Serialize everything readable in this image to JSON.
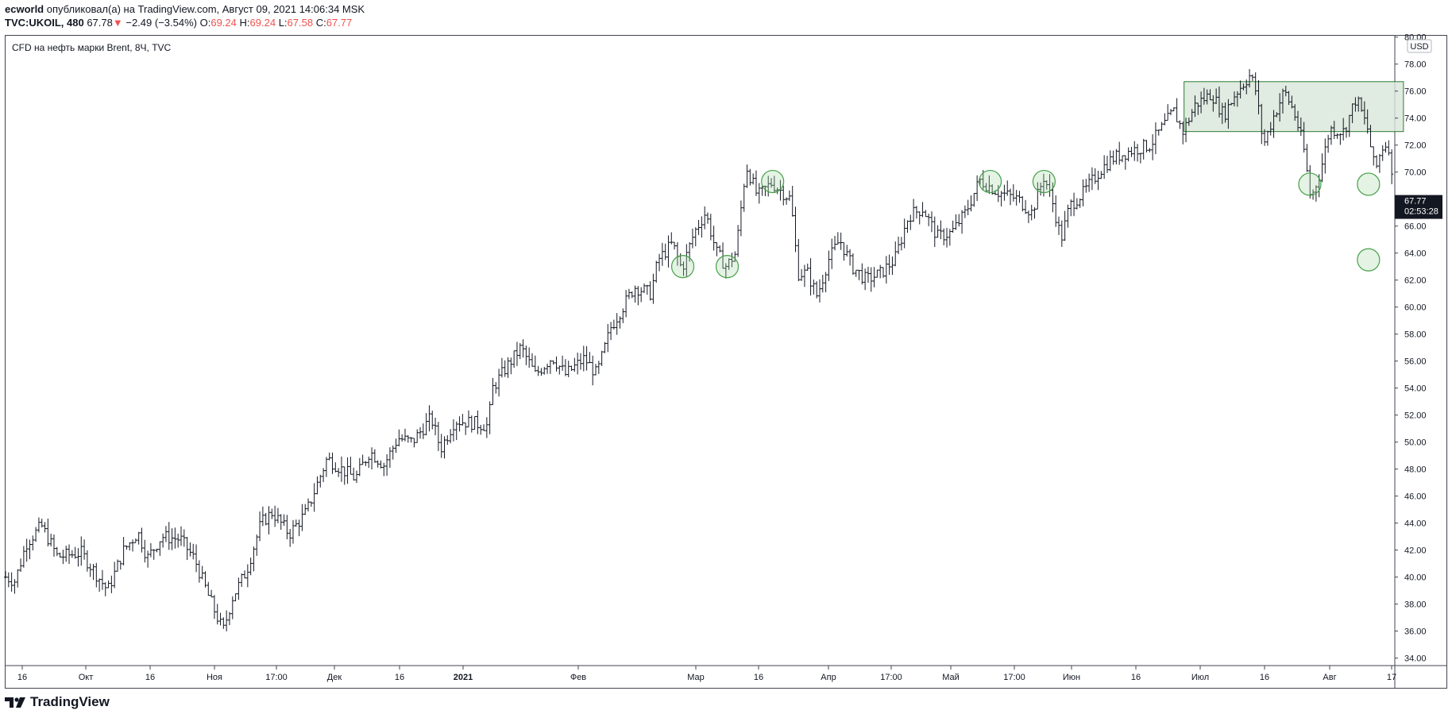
{
  "header": {
    "author": "ecworld",
    "published_text": "опубликовал(а) на TradingView.com, Август 09, 2021 14:06:34 MSK",
    "symbol": "TVC:UKOIL, 480",
    "last": "67.78",
    "change_arrow": "▼",
    "change": "−2.49 (−3.54%)",
    "open_label": "O:",
    "open": "69.24",
    "high_label": "H:",
    "high": "69.24",
    "low_label": "L:",
    "low": "67.58",
    "close_label": "C:",
    "close": "67.77"
  },
  "colors": {
    "up": "#26a69a",
    "down": "#ef5350",
    "bars": "#131722",
    "zone_fill": "#d8e6da",
    "zone_stroke": "#2e7d32",
    "circle": "#43a047"
  },
  "brand": {
    "name": "TradingView",
    "icon": "tradingview-logo-icon"
  },
  "chart_data": {
    "type": "ohlc",
    "title": "CFD на нефть марки Brent, 8Ч, TVC",
    "currency": "USD",
    "ylim": [
      33.5,
      80.1
    ],
    "y_ticks": [
      "80.00",
      "78.00",
      "76.00",
      "74.00",
      "72.00",
      "70.00",
      "68.00",
      "66.00",
      "64.00",
      "62.00",
      "60.00",
      "58.00",
      "56.00",
      "54.00",
      "52.00",
      "50.00",
      "48.00",
      "46.00",
      "44.00",
      "42.00",
      "40.00",
      "38.00",
      "36.00",
      "34.00"
    ],
    "x_ticks": [
      "16",
      "Окт",
      "16",
      "Ноя",
      "17:00",
      "Дек",
      "16",
      "2021",
      "Фев",
      "Мар",
      "16",
      "Апр",
      "17:00",
      "Май",
      "17:00",
      "Июн",
      "16",
      "Июл",
      "16",
      "Авг",
      "17"
    ],
    "bold_x_ticks": [
      "2021"
    ],
    "last_price_label": "67.77",
    "countdown_label": "02:53:28",
    "last_price": 67.77,
    "price_path": [
      [
        0,
        40.0
      ],
      [
        10,
        39.7
      ],
      [
        22,
        42.5
      ],
      [
        38,
        43.8
      ],
      [
        55,
        41.5
      ],
      [
        80,
        41.8
      ],
      [
        98,
        40.0
      ],
      [
        108,
        39.0
      ],
      [
        125,
        42.0
      ],
      [
        140,
        43.3
      ],
      [
        150,
        41.4
      ],
      [
        165,
        43.0
      ],
      [
        185,
        42.8
      ],
      [
        200,
        41.3
      ],
      [
        215,
        38.5
      ],
      [
        230,
        36.0
      ],
      [
        240,
        38.5
      ],
      [
        255,
        40.5
      ],
      [
        270,
        44.0
      ],
      [
        282,
        44.8
      ],
      [
        300,
        43.2
      ],
      [
        318,
        44.8
      ],
      [
        340,
        48.8
      ],
      [
        355,
        48.0
      ],
      [
        370,
        47.3
      ],
      [
        385,
        49.3
      ],
      [
        400,
        48.3
      ],
      [
        415,
        50.3
      ],
      [
        430,
        50.0
      ],
      [
        450,
        51.8
      ],
      [
        460,
        49.5
      ],
      [
        475,
        51.6
      ],
      [
        495,
        51.4
      ],
      [
        510,
        51.2
      ],
      [
        515,
        54.0
      ],
      [
        530,
        55.6
      ],
      [
        545,
        57.0
      ],
      [
        560,
        55.0
      ],
      [
        578,
        56.3
      ],
      [
        592,
        55.0
      ],
      [
        612,
        56.2
      ],
      [
        625,
        55.0
      ],
      [
        640,
        58.5
      ],
      [
        665,
        61.5
      ],
      [
        682,
        61.0
      ],
      [
        690,
        63.5
      ],
      [
        705,
        64.7
      ],
      [
        715,
        62.8
      ],
      [
        728,
        65.5
      ],
      [
        740,
        67.0
      ],
      [
        752,
        64.0
      ],
      [
        762,
        63.0
      ],
      [
        772,
        64.0
      ],
      [
        783,
        70.5
      ],
      [
        795,
        68.2
      ],
      [
        810,
        69.2
      ],
      [
        830,
        68.0
      ],
      [
        838,
        62.5
      ],
      [
        848,
        62.5
      ],
      [
        858,
        60.8
      ],
      [
        870,
        63.5
      ],
      [
        882,
        65.0
      ],
      [
        895,
        63.0
      ],
      [
        910,
        62.0
      ],
      [
        925,
        62.5
      ],
      [
        940,
        63.5
      ],
      [
        955,
        66.8
      ],
      [
        970,
        67.3
      ],
      [
        985,
        65.2
      ],
      [
        1000,
        65.5
      ],
      [
        1015,
        67.0
      ],
      [
        1030,
        69.4
      ],
      [
        1050,
        68.5
      ],
      [
        1070,
        68.0
      ],
      [
        1085,
        67.0
      ],
      [
        1098,
        69.7
      ],
      [
        1108,
        67.5
      ],
      [
        1116,
        65.0
      ],
      [
        1125,
        67.5
      ],
      [
        1140,
        68.5
      ],
      [
        1158,
        70.2
      ],
      [
        1170,
        71.0
      ],
      [
        1190,
        71.6
      ],
      [
        1210,
        72.0
      ],
      [
        1225,
        73.5
      ],
      [
        1235,
        74.5
      ],
      [
        1245,
        73.0
      ],
      [
        1258,
        75.0
      ],
      [
        1275,
        75.8
      ],
      [
        1288,
        74.2
      ],
      [
        1300,
        75.8
      ],
      [
        1316,
        77.2
      ],
      [
        1322,
        76.0
      ],
      [
        1330,
        72.0
      ],
      [
        1340,
        74.0
      ],
      [
        1352,
        76.0
      ],
      [
        1362,
        74.5
      ],
      [
        1372,
        72.0
      ],
      [
        1380,
        68.0
      ],
      [
        1390,
        70.0
      ],
      [
        1400,
        73.2
      ],
      [
        1415,
        73.0
      ],
      [
        1428,
        75.5
      ],
      [
        1440,
        73.2
      ],
      [
        1448,
        70.0
      ],
      [
        1455,
        71.8
      ],
      [
        1462,
        72.2
      ],
      [
        1468,
        67.8
      ]
    ],
    "zone": {
      "x0": 1246,
      "x1": 1478,
      "y_top": 76.7,
      "y_bottom": 73.0
    },
    "circles": [
      {
        "x": 716,
        "y": 63.0
      },
      {
        "x": 763,
        "y": 63.0
      },
      {
        "x": 811,
        "y": 69.3
      },
      {
        "x": 1041,
        "y": 69.3
      },
      {
        "x": 1098,
        "y": 69.3
      },
      {
        "x": 1379,
        "y": 69.1
      },
      {
        "x": 1441,
        "y": 69.1
      },
      {
        "x": 1441,
        "y": 63.5
      }
    ]
  }
}
